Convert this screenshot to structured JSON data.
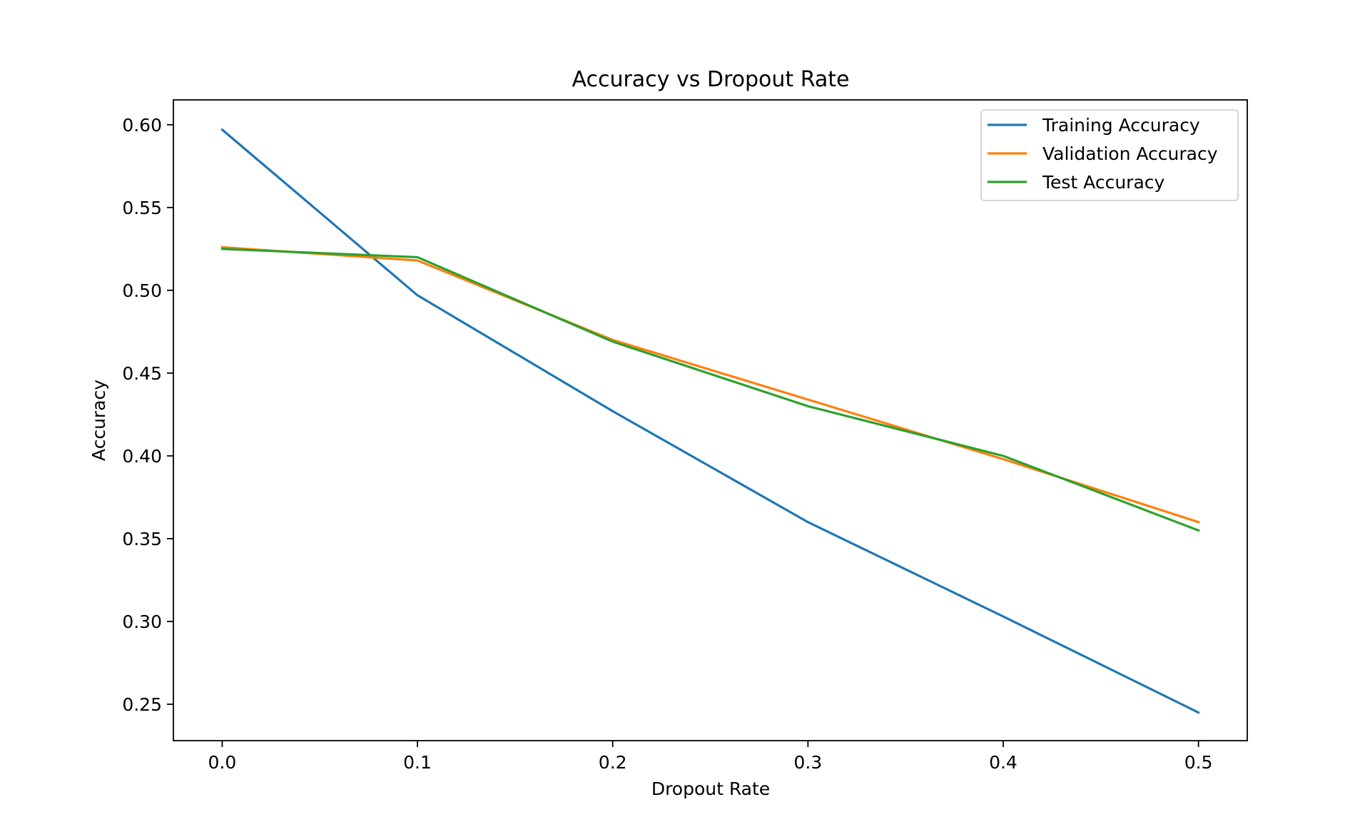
{
  "chart_data": {
    "type": "line",
    "title": "Accuracy vs Dropout Rate",
    "xlabel": "Dropout Rate",
    "ylabel": "Accuracy",
    "x": [
      0.0,
      0.1,
      0.2,
      0.3,
      0.4,
      0.5
    ],
    "xticks": [
      0.0,
      0.1,
      0.2,
      0.3,
      0.4,
      0.5
    ],
    "xtick_labels": [
      "0.0",
      "0.1",
      "0.2",
      "0.3",
      "0.4",
      "0.5"
    ],
    "yticks": [
      0.25,
      0.3,
      0.35,
      0.4,
      0.45,
      0.5,
      0.55,
      0.6
    ],
    "ytick_labels": [
      "0.25",
      "0.30",
      "0.35",
      "0.40",
      "0.45",
      "0.50",
      "0.55",
      "0.60"
    ],
    "xlim": [
      -0.025,
      0.525
    ],
    "ylim": [
      0.228,
      0.615
    ],
    "grid": false,
    "legend_position": "top-right",
    "series": [
      {
        "name": "Training Accuracy",
        "color": "#1f77b4",
        "values": [
          0.597,
          0.497,
          0.427,
          0.36,
          0.303,
          0.245
        ]
      },
      {
        "name": "Validation Accuracy",
        "color": "#ff7f0e",
        "values": [
          0.526,
          0.518,
          0.47,
          0.434,
          0.398,
          0.36
        ]
      },
      {
        "name": "Test Accuracy",
        "color": "#2ca02c",
        "values": [
          0.525,
          0.52,
          0.469,
          0.43,
          0.4,
          0.355
        ]
      }
    ]
  }
}
